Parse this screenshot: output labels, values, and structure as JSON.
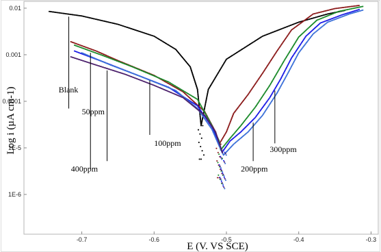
{
  "chart_data": {
    "type": "scatter",
    "title": "",
    "xlabel": "E (V. VS SCE)",
    "ylabel": "Log i (µA cm-1)",
    "log_y": true,
    "xlim": [
      -0.78,
      -0.29
    ],
    "ylim": [
      1.4e-07,
      0.014
    ],
    "x_ticks": [
      {
        "value": -0.7,
        "label": "-0.7"
      },
      {
        "value": -0.6,
        "label": "-0.6"
      },
      {
        "value": -0.5,
        "label": "-0.5"
      },
      {
        "value": -0.4,
        "label": "-0.4"
      },
      {
        "value": -0.3,
        "label": "-0.3"
      }
    ],
    "y_ticks": [
      {
        "value": 0.01,
        "label": "0.01"
      },
      {
        "value": 0.001,
        "label": "0.001"
      },
      {
        "value": 0.0001,
        "label": "0.0001"
      },
      {
        "value": 1e-05,
        "label": "1E-5"
      },
      {
        "value": 1e-06,
        "label": "1E-6"
      }
    ],
    "series": [
      {
        "name": "Blank",
        "color": "#000000",
        "ecorr": -0.535,
        "icorr": 3e-05,
        "points": [
          [
            -0.745,
            0.0085
          ],
          [
            -0.7,
            0.0068
          ],
          [
            -0.65,
            0.0045
          ],
          [
            -0.6,
            0.0025
          ],
          [
            -0.57,
            0.0013
          ],
          [
            -0.55,
            0.00055
          ],
          [
            -0.54,
            0.00018
          ],
          [
            -0.535,
            3e-05
          ],
          [
            -0.525,
            0.00018
          ],
          [
            -0.5,
            0.0008
          ],
          [
            -0.45,
            0.0025
          ],
          [
            -0.4,
            0.005
          ],
          [
            -0.36,
            0.0075
          ],
          [
            -0.335,
            0.009
          ]
        ]
      },
      {
        "name": "50ppm",
        "color": "#8b1a1a",
        "ecorr": -0.51,
        "icorr": 1.2e-05,
        "points": [
          [
            -0.715,
            0.0019
          ],
          [
            -0.68,
            0.0012
          ],
          [
            -0.65,
            0.00075
          ],
          [
            -0.6,
            0.00036
          ],
          [
            -0.56,
            0.00016
          ],
          [
            -0.53,
            6e-05
          ],
          [
            -0.515,
            2.2e-05
          ],
          [
            -0.51,
            1.2e-05
          ],
          [
            -0.5,
            2.2e-05
          ],
          [
            -0.49,
            5.5e-05
          ],
          [
            -0.47,
            0.00014
          ],
          [
            -0.45,
            0.0004
          ],
          [
            -0.43,
            0.0012
          ],
          [
            -0.41,
            0.0034
          ],
          [
            -0.38,
            0.0075
          ],
          [
            -0.35,
            0.0098
          ],
          [
            -0.315,
            0.0115
          ]
        ]
      },
      {
        "name": "100ppm",
        "color": "#1a8a2a",
        "ecorr": -0.508,
        "icorr": 9e-06,
        "points": [
          [
            -0.71,
            0.0016
          ],
          [
            -0.67,
            0.00095
          ],
          [
            -0.63,
            0.00055
          ],
          [
            -0.58,
            0.00026
          ],
          [
            -0.54,
            0.00011
          ],
          [
            -0.52,
            3e-05
          ],
          [
            -0.51,
            1.4e-05
          ],
          [
            -0.508,
            9e-06
          ],
          [
            -0.495,
            1.6e-05
          ],
          [
            -0.48,
            3e-05
          ],
          [
            -0.46,
            7.5e-05
          ],
          [
            -0.44,
            0.00022
          ],
          [
            -0.42,
            0.00075
          ],
          [
            -0.4,
            0.0024
          ],
          [
            -0.375,
            0.0055
          ],
          [
            -0.345,
            0.0085
          ],
          [
            -0.31,
            0.011
          ]
        ]
      },
      {
        "name": "200ppm",
        "color": "#1a1ae6",
        "ecorr": -0.506,
        "icorr": 8e-06,
        "points": [
          [
            -0.71,
            0.0012
          ],
          [
            -0.67,
            0.0007
          ],
          [
            -0.63,
            0.0004
          ],
          [
            -0.58,
            0.0002
          ],
          [
            -0.54,
            8e-05
          ],
          [
            -0.52,
            2.8e-05
          ],
          [
            -0.51,
            1.2e-05
          ],
          [
            -0.506,
            8e-06
          ],
          [
            -0.495,
            1.4e-05
          ],
          [
            -0.48,
            2.2e-05
          ],
          [
            -0.46,
            4.5e-05
          ],
          [
            -0.44,
            0.00012
          ],
          [
            -0.425,
            0.0003
          ],
          [
            -0.41,
            0.00085
          ],
          [
            -0.39,
            0.0025
          ],
          [
            -0.37,
            0.0048
          ],
          [
            -0.34,
            0.0072
          ],
          [
            -0.315,
            0.0095
          ]
        ]
      },
      {
        "name": "300ppm",
        "color": "#3a6fd8",
        "ecorr": -0.504,
        "icorr": 7e-06,
        "points": [
          [
            -0.7,
            0.0011
          ],
          [
            -0.66,
            0.0006
          ],
          [
            -0.62,
            0.00035
          ],
          [
            -0.57,
            0.00017
          ],
          [
            -0.54,
            7e-05
          ],
          [
            -0.52,
            2.5e-05
          ],
          [
            -0.51,
            1.1e-05
          ],
          [
            -0.504,
            7e-06
          ],
          [
            -0.49,
            1.2e-05
          ],
          [
            -0.47,
            2.2e-05
          ],
          [
            -0.45,
            5e-05
          ],
          [
            -0.43,
            0.00015
          ],
          [
            -0.415,
            0.0004
          ],
          [
            -0.4,
            0.0011
          ],
          [
            -0.38,
            0.0028
          ],
          [
            -0.36,
            0.005
          ],
          [
            -0.33,
            0.0075
          ],
          [
            -0.31,
            0.0092
          ]
        ]
      },
      {
        "name": "400ppm",
        "color": "#4b1f6b",
        "ecorr": -0.505,
        "icorr": 7.5e-06,
        "points": [
          [
            -0.715,
            0.0009
          ],
          [
            -0.68,
            0.0006
          ],
          [
            -0.64,
            0.00038
          ],
          [
            -0.6,
            0.00022
          ],
          [
            -0.56,
            0.00012
          ],
          [
            -0.53,
            5e-05
          ],
          [
            -0.515,
            2.2e-05
          ],
          [
            -0.505,
            7.5e-06
          ]
        ]
      }
    ],
    "annotations": [
      {
        "text": "Blank",
        "label_x": -0.732,
        "label_y": 0.000155,
        "line_from_x": -0.718,
        "line_from_y": 7e-05,
        "line_to_x": -0.718,
        "line_to_y": 0.0066
      },
      {
        "text": "50ppm",
        "label_x": -0.7,
        "label_y": 5.2e-05,
        "line_from_x": -0.688,
        "line_from_y": 3.5e-06,
        "line_to_x": -0.688,
        "line_to_y": 0.0011
      },
      {
        "text": "100ppm",
        "label_x": -0.6,
        "label_y": 1.1e-05,
        "line_from_x": -0.606,
        "line_from_y": 1.9e-05,
        "line_to_x": -0.606,
        "line_to_y": 0.00028
      },
      {
        "text": "400ppm",
        "label_x": -0.715,
        "label_y": 3.1e-06,
        "line_from_x": -0.665,
        "line_from_y": 5.2e-06,
        "line_to_x": -0.665,
        "line_to_y": 0.00046
      },
      {
        "text": "200ppm",
        "label_x": -0.48,
        "label_y": 3.1e-06,
        "line_from_x": -0.463,
        "line_from_y": 5.2e-06,
        "line_to_x": -0.463,
        "line_to_y": 3.5e-05
      },
      {
        "text": "300ppm",
        "label_x": -0.44,
        "label_y": 8.1e-06,
        "line_from_x": -0.433,
        "line_from_y": 1.25e-05,
        "line_to_x": -0.433,
        "line_to_y": 0.00017
      }
    ]
  }
}
